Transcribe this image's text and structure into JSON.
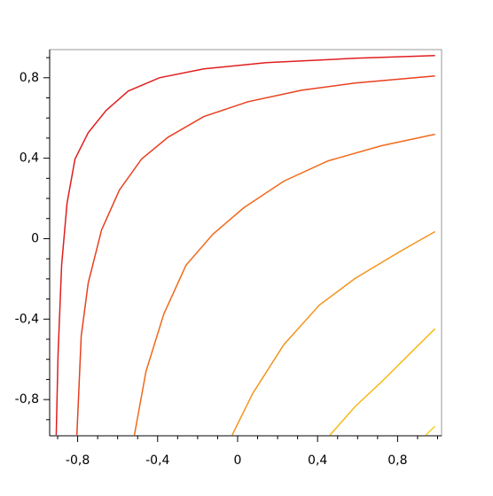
{
  "chart_data": {
    "type": "contour",
    "xlim": [
      -0.94,
      1.02
    ],
    "ylim": [
      -0.98,
      0.94
    ],
    "xticks": [
      {
        "value": -0.8,
        "label": "-0,8"
      },
      {
        "value": -0.4,
        "label": "-0,4"
      },
      0,
      {
        "value": 0.4,
        "label": "0,4"
      },
      {
        "value": 0.8,
        "label": "0,8"
      }
    ],
    "yticks": [
      {
        "value": -0.8,
        "label": "-0,8"
      },
      {
        "value": -0.4,
        "label": "-0,4"
      },
      0,
      {
        "value": 0.4,
        "label": "0,4"
      },
      {
        "value": 0.8,
        "label": "0,8"
      }
    ],
    "xminorticks": [
      -0.9,
      -0.7,
      -0.6,
      -0.5,
      -0.3,
      -0.2,
      -0.1,
      0.1,
      0.2,
      0.3,
      0.5,
      0.6,
      0.7,
      0.9,
      1.0
    ],
    "yminorticks": [
      -0.9,
      -0.7,
      -0.6,
      -0.5,
      -0.3,
      -0.2,
      -0.1,
      0.1,
      0.2,
      0.3,
      0.5,
      0.6,
      0.7,
      0.9
    ],
    "series": [
      {
        "color": "#e01e1e",
        "x": [
          -0.907,
          -0.898,
          -0.88,
          -0.853,
          -0.813,
          -0.747,
          -0.658,
          -0.547,
          -0.391,
          -0.169,
          0.142,
          0.587,
          0.987
        ],
        "values": [
          -0.976,
          -0.571,
          -0.132,
          0.176,
          0.396,
          0.527,
          0.637,
          0.734,
          0.8,
          0.844,
          0.875,
          0.897,
          0.91
        ]
      },
      {
        "color": "#e8401e",
        "x": [
          -0.804,
          -0.782,
          -0.747,
          -0.68,
          -0.591,
          -0.48,
          -0.347,
          -0.169,
          0.053,
          0.32,
          0.587,
          0.987
        ],
        "values": [
          -0.976,
          -0.484,
          -0.22,
          0.044,
          0.242,
          0.396,
          0.505,
          0.607,
          0.681,
          0.738,
          0.774,
          0.809
        ]
      },
      {
        "color": "#f06a1c",
        "x": [
          -0.516,
          -0.458,
          -0.369,
          -0.258,
          -0.124,
          0.031,
          0.231,
          0.453,
          0.72,
          0.987
        ],
        "values": [
          -0.976,
          -0.659,
          -0.374,
          -0.132,
          0.022,
          0.154,
          0.286,
          0.387,
          0.462,
          0.519
        ]
      },
      {
        "color": "#f5931a",
        "x": [
          -0.027,
          0.076,
          0.231,
          0.409,
          0.587,
          0.809,
          0.987
        ],
        "values": [
          -0.976,
          -0.769,
          -0.527,
          -0.33,
          -0.198,
          -0.066,
          0.035
        ]
      },
      {
        "color": "#f8b818",
        "x": [
          0.462,
          0.587,
          0.72,
          0.853,
          0.987
        ],
        "values": [
          -0.976,
          -0.835,
          -0.712,
          -0.58,
          -0.448
        ]
      },
      {
        "color": "#f5d020",
        "x": [
          0.942,
          0.987
        ],
        "values": [
          -0.976,
          -0.932
        ]
      }
    ]
  }
}
